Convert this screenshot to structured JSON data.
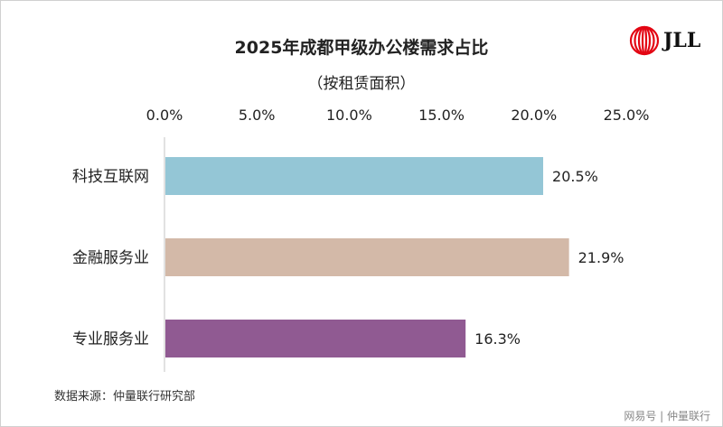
{
  "chart_data": {
    "type": "bar",
    "orientation": "horizontal",
    "title": "2025年成都甲级办公楼需求占比",
    "subtitle": "（按租赁面积）",
    "categories": [
      "科技互联网",
      "金融服务业",
      "专业服务业"
    ],
    "values": [
      20.5,
      21.9,
      16.3
    ],
    "value_labels": [
      "20.5%",
      "21.9%",
      "16.3%"
    ],
    "colors": [
      "#94c6d6",
      "#d3b9a8",
      "#905a92"
    ],
    "xlim": [
      0,
      25
    ],
    "x_ticks": [
      0,
      5,
      10,
      15,
      20,
      25
    ],
    "x_tick_labels": [
      "0.0%",
      "5.0%",
      "10.0%",
      "15.0%",
      "20.0%",
      "25.0%"
    ],
    "x_axis_position": "top",
    "grid": false,
    "legend": "none"
  },
  "source": "数据来源：仲量联行研究部",
  "logo": {
    "text": "JLL",
    "color": "#e30613"
  },
  "watermark": "网易号 | 仲量联行"
}
